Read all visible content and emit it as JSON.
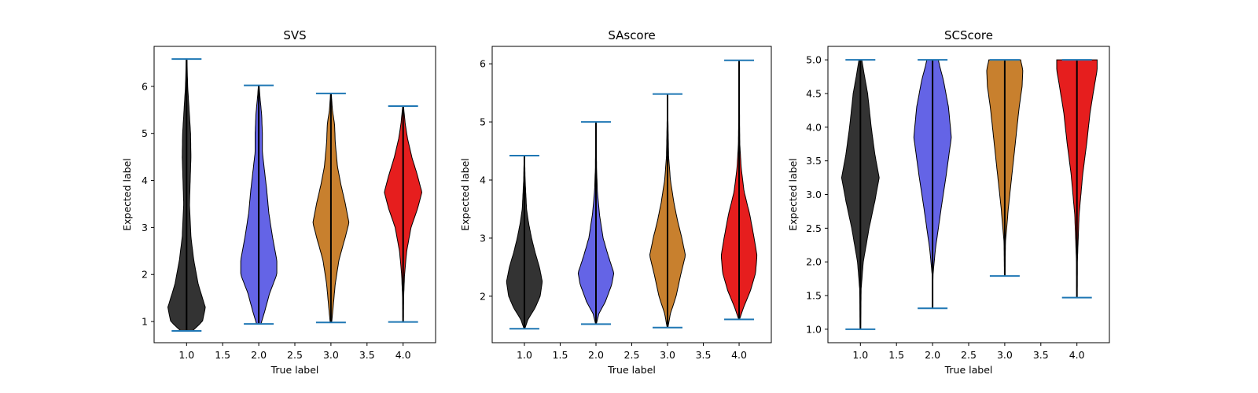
{
  "chart_data": [
    {
      "type": "violin",
      "title": "SVS",
      "xlabel": "True label",
      "ylabel": "Expected label",
      "xlim": [
        0.55,
        4.45
      ],
      "ylim": [
        0.55,
        6.85
      ],
      "xticks": [
        "1.0",
        "1.5",
        "2.0",
        "2.5",
        "3.0",
        "3.5",
        "4.0"
      ],
      "yticks": [
        "1",
        "2",
        "3",
        "4",
        "5",
        "6"
      ],
      "violins": [
        {
          "x": 1.0,
          "color": "#333333",
          "min": 0.8,
          "max": 6.58,
          "profile": [
            [
              0.8,
              0.08
            ],
            [
              1.0,
              0.22
            ],
            [
              1.3,
              0.26
            ],
            [
              1.8,
              0.16
            ],
            [
              2.3,
              0.1
            ],
            [
              2.8,
              0.06
            ],
            [
              3.5,
              0.04
            ],
            [
              4.0,
              0.05
            ],
            [
              4.5,
              0.06
            ],
            [
              5.0,
              0.055
            ],
            [
              5.5,
              0.035
            ],
            [
              6.0,
              0.015
            ],
            [
              6.58,
              0.005
            ]
          ]
        },
        {
          "x": 2.0,
          "color": "#6464e6",
          "min": 0.95,
          "max": 6.02,
          "profile": [
            [
              0.95,
              0.03
            ],
            [
              1.2,
              0.08
            ],
            [
              1.6,
              0.15
            ],
            [
              2.0,
              0.25
            ],
            [
              2.3,
              0.25
            ],
            [
              2.8,
              0.19
            ],
            [
              3.3,
              0.14
            ],
            [
              3.8,
              0.11
            ],
            [
              4.2,
              0.08
            ],
            [
              4.6,
              0.05
            ],
            [
              5.0,
              0.05
            ],
            [
              5.4,
              0.04
            ],
            [
              5.8,
              0.015
            ],
            [
              6.02,
              0.005
            ]
          ]
        },
        {
          "x": 3.0,
          "color": "#c8802e",
          "min": 0.98,
          "max": 5.85,
          "profile": [
            [
              0.98,
              0.01
            ],
            [
              1.3,
              0.03
            ],
            [
              1.8,
              0.06
            ],
            [
              2.3,
              0.11
            ],
            [
              2.8,
              0.2
            ],
            [
              3.1,
              0.25
            ],
            [
              3.5,
              0.2
            ],
            [
              3.9,
              0.14
            ],
            [
              4.3,
              0.09
            ],
            [
              4.8,
              0.06
            ],
            [
              5.2,
              0.05
            ],
            [
              5.5,
              0.02
            ],
            [
              5.85,
              0.005
            ]
          ]
        },
        {
          "x": 4.0,
          "color": "#e61e1e",
          "min": 0.99,
          "max": 5.58,
          "profile": [
            [
              0.99,
              0.003
            ],
            [
              1.5,
              0.007
            ],
            [
              2.0,
              0.02
            ],
            [
              2.5,
              0.05
            ],
            [
              3.0,
              0.11
            ],
            [
              3.4,
              0.2
            ],
            [
              3.75,
              0.26
            ],
            [
              4.1,
              0.2
            ],
            [
              4.5,
              0.12
            ],
            [
              4.9,
              0.06
            ],
            [
              5.2,
              0.03
            ],
            [
              5.58,
              0.005
            ]
          ]
        }
      ]
    },
    {
      "type": "violin",
      "title": "SAscore",
      "xlabel": "True label",
      "ylabel": "Expected label",
      "xlim": [
        0.55,
        4.45
      ],
      "ylim": [
        1.2,
        6.3
      ],
      "xticks": [
        "1.0",
        "1.5",
        "2.0",
        "2.5",
        "3.0",
        "3.5",
        "4.0"
      ],
      "yticks": [
        "2",
        "3",
        "4",
        "5",
        "6"
      ],
      "violins": [
        {
          "x": 1.0,
          "color": "#333333",
          "min": 1.44,
          "max": 4.42,
          "profile": [
            [
              1.44,
              0.005
            ],
            [
              1.6,
              0.05
            ],
            [
              1.8,
              0.15
            ],
            [
              2.0,
              0.22
            ],
            [
              2.25,
              0.25
            ],
            [
              2.5,
              0.21
            ],
            [
              2.75,
              0.15
            ],
            [
              3.0,
              0.1
            ],
            [
              3.25,
              0.06
            ],
            [
              3.5,
              0.03
            ],
            [
              4.0,
              0.01
            ],
            [
              4.42,
              0.003
            ]
          ]
        },
        {
          "x": 2.0,
          "color": "#6464e6",
          "min": 1.52,
          "max": 5.0,
          "profile": [
            [
              1.52,
              0.005
            ],
            [
              1.7,
              0.04
            ],
            [
              1.9,
              0.13
            ],
            [
              2.2,
              0.22
            ],
            [
              2.4,
              0.25
            ],
            [
              2.7,
              0.17
            ],
            [
              3.0,
              0.1
            ],
            [
              3.4,
              0.05
            ],
            [
              3.8,
              0.02
            ],
            [
              4.2,
              0.008
            ],
            [
              5.0,
              0.003
            ]
          ]
        },
        {
          "x": 3.0,
          "color": "#c8802e",
          "min": 1.46,
          "max": 5.48,
          "profile": [
            [
              1.46,
              0.005
            ],
            [
              1.7,
              0.04
            ],
            [
              2.0,
              0.12
            ],
            [
              2.4,
              0.19
            ],
            [
              2.7,
              0.25
            ],
            [
              3.0,
              0.2
            ],
            [
              3.3,
              0.14
            ],
            [
              3.6,
              0.09
            ],
            [
              4.0,
              0.04
            ],
            [
              4.4,
              0.015
            ],
            [
              5.0,
              0.006
            ],
            [
              5.48,
              0.003
            ]
          ]
        },
        {
          "x": 4.0,
          "color": "#e61e1e",
          "min": 1.6,
          "max": 6.06,
          "profile": [
            [
              1.6,
              0.005
            ],
            [
              1.8,
              0.06
            ],
            [
              2.1,
              0.16
            ],
            [
              2.4,
              0.23
            ],
            [
              2.7,
              0.25
            ],
            [
              3.0,
              0.21
            ],
            [
              3.4,
              0.15
            ],
            [
              3.8,
              0.07
            ],
            [
              4.2,
              0.03
            ],
            [
              4.6,
              0.01
            ],
            [
              5.0,
              0.006
            ],
            [
              6.06,
              0.003
            ]
          ]
        }
      ]
    },
    {
      "type": "violin",
      "title": "SCScore",
      "xlabel": "True label",
      "ylabel": "Expected label",
      "xlim": [
        0.55,
        4.45
      ],
      "ylim": [
        0.8,
        5.2
      ],
      "xticks": [
        "1.0",
        "1.5",
        "2.0",
        "2.5",
        "3.0",
        "3.5",
        "4.0"
      ],
      "yticks": [
        "1.0",
        "1.5",
        "2.0",
        "2.5",
        "3.0",
        "3.5",
        "4.0",
        "4.5",
        "5.0"
      ],
      "violins": [
        {
          "x": 1.0,
          "color": "#333333",
          "min": 1.0,
          "max": 5.0,
          "profile": [
            [
              1.0,
              0.003
            ],
            [
              1.6,
              0.01
            ],
            [
              2.0,
              0.04
            ],
            [
              2.5,
              0.12
            ],
            [
              2.9,
              0.2
            ],
            [
              3.25,
              0.26
            ],
            [
              3.6,
              0.2
            ],
            [
              4.0,
              0.15
            ],
            [
              4.5,
              0.1
            ],
            [
              4.8,
              0.05
            ],
            [
              5.0,
              0.02
            ]
          ]
        },
        {
          "x": 2.0,
          "color": "#6464e6",
          "min": 1.31,
          "max": 5.0,
          "profile": [
            [
              1.31,
              0.003
            ],
            [
              1.8,
              0.005
            ],
            [
              2.2,
              0.04
            ],
            [
              2.8,
              0.12
            ],
            [
              3.3,
              0.19
            ],
            [
              3.85,
              0.26
            ],
            [
              4.3,
              0.22
            ],
            [
              4.7,
              0.15
            ],
            [
              4.9,
              0.1
            ],
            [
              5.0,
              0.08
            ]
          ]
        },
        {
          "x": 3.0,
          "color": "#c8802e",
          "min": 1.79,
          "max": 5.0,
          "profile": [
            [
              1.79,
              0.003
            ],
            [
              2.3,
              0.01
            ],
            [
              2.8,
              0.05
            ],
            [
              3.3,
              0.1
            ],
            [
              3.8,
              0.15
            ],
            [
              4.3,
              0.2
            ],
            [
              4.6,
              0.24
            ],
            [
              4.85,
              0.25
            ],
            [
              5.0,
              0.22
            ]
          ]
        },
        {
          "x": 4.0,
          "color": "#e61e1e",
          "min": 1.47,
          "max": 5.0,
          "profile": [
            [
              1.47,
              0.003
            ],
            [
              2.0,
              0.006
            ],
            [
              2.7,
              0.03
            ],
            [
              3.3,
              0.08
            ],
            [
              3.8,
              0.14
            ],
            [
              4.2,
              0.18
            ],
            [
              4.6,
              0.24
            ],
            [
              4.85,
              0.28
            ],
            [
              5.0,
              0.28
            ]
          ]
        }
      ]
    }
  ]
}
